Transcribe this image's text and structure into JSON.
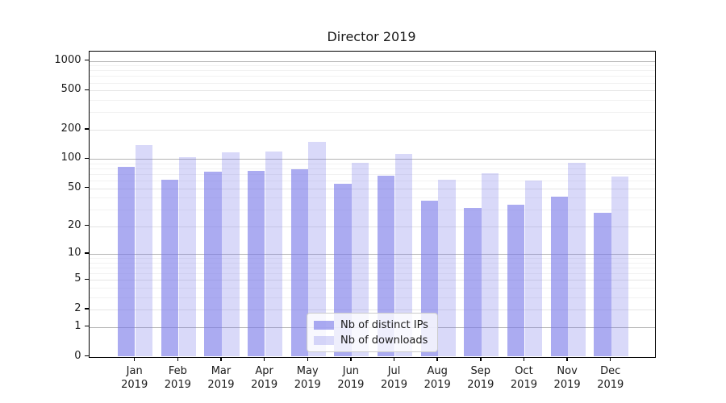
{
  "chart_data": {
    "type": "bar",
    "title": "Director 2019",
    "categories": [
      "Jan",
      "Feb",
      "Mar",
      "Apr",
      "May",
      "Jun",
      "Jul",
      "Aug",
      "Sep",
      "Oct",
      "Nov",
      "Dec"
    ],
    "category_year": "2019",
    "series": [
      {
        "name": "Nb of distinct IPs",
        "color": "#7878e8",
        "alpha": 0.62,
        "values": [
          84,
          61,
          74,
          75,
          78,
          56,
          67,
          37,
          31,
          34,
          41,
          28
        ]
      },
      {
        "name": "Nb of downloads",
        "color": "#7878e8",
        "alpha": 0.28,
        "values": [
          139,
          105,
          117,
          119,
          150,
          91,
          112,
          61,
          71,
          60,
          91,
          66
        ]
      }
    ],
    "yscale": "log1p",
    "yticks": [
      0,
      1,
      2,
      5,
      10,
      20,
      50,
      100,
      200,
      500,
      1000
    ],
    "yticks_minor": [
      3,
      4,
      6,
      7,
      8,
      9,
      30,
      40,
      60,
      70,
      80,
      90,
      300,
      400,
      600,
      700,
      800,
      900
    ],
    "ylim": [
      0,
      1243
    ],
    "grid": true,
    "legend_position": "lower center",
    "colors": {
      "grid_major": "#b3b3b3",
      "grid_mid": "#e4e4e4",
      "grid_minor": "#f2f2f2",
      "spine": "#000000",
      "text": "#1a1a1a",
      "background": "#ffffff"
    }
  }
}
